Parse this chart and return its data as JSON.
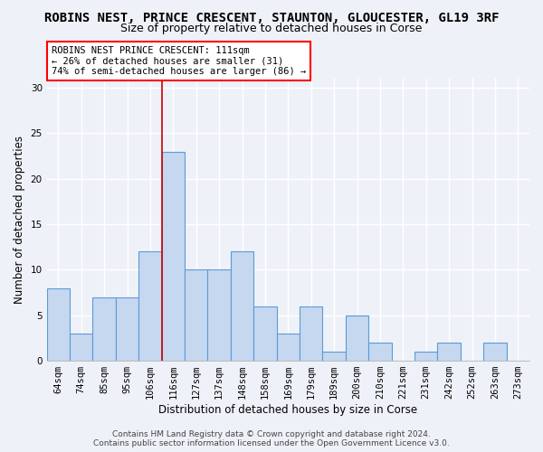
{
  "title": "ROBINS NEST, PRINCE CRESCENT, STAUNTON, GLOUCESTER, GL19 3RF",
  "subtitle": "Size of property relative to detached houses in Corse",
  "xlabel": "Distribution of detached houses by size in Corse",
  "ylabel": "Number of detached properties",
  "bin_labels": [
    "64sqm",
    "74sqm",
    "85sqm",
    "95sqm",
    "106sqm",
    "116sqm",
    "127sqm",
    "137sqm",
    "148sqm",
    "158sqm",
    "169sqm",
    "179sqm",
    "189sqm",
    "200sqm",
    "210sqm",
    "221sqm",
    "231sqm",
    "242sqm",
    "252sqm",
    "263sqm",
    "273sqm"
  ],
  "bar_values": [
    8,
    3,
    7,
    7,
    12,
    23,
    10,
    10,
    12,
    6,
    3,
    6,
    1,
    5,
    2,
    0,
    1,
    2,
    0,
    2,
    0
  ],
  "bar_color": "#c5d8f0",
  "bar_edge_color": "#5b9bd5",
  "vline_color": "#cc0000",
  "vline_x": 4.5,
  "annotation_text": "ROBINS NEST PRINCE CRESCENT: 111sqm\n← 26% of detached houses are smaller (31)\n74% of semi-detached houses are larger (86) →",
  "annotation_box_color": "white",
  "annotation_box_edge_color": "red",
  "yticks": [
    0,
    5,
    10,
    15,
    20,
    25,
    30
  ],
  "ylim": [
    0,
    31
  ],
  "footer_line1": "Contains HM Land Registry data © Crown copyright and database right 2024.",
  "footer_line2": "Contains public sector information licensed under the Open Government Licence v3.0.",
  "bg_color": "#eef2f8",
  "grid_color": "white",
  "title_fontsize": 10,
  "subtitle_fontsize": 9,
  "axis_label_fontsize": 8.5,
  "tick_fontsize": 7.5,
  "annotation_fontsize": 7.5,
  "footer_fontsize": 6.5
}
